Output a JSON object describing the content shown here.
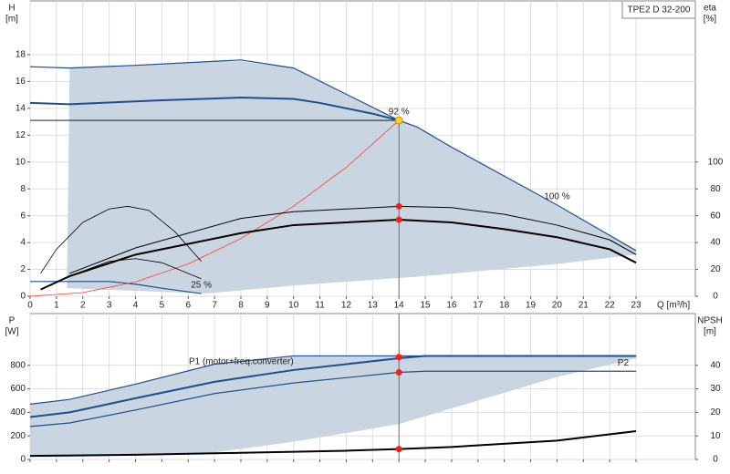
{
  "chart_data": [
    {
      "type": "line",
      "title": "TPE2 D 32-200",
      "xlabel": "Q [m³/h]",
      "ylabel": [
        "H",
        "[m]"
      ],
      "y2label": [
        "eta",
        "[%]"
      ],
      "xlim": [
        0,
        25.25
      ],
      "xticks": [
        0,
        1,
        2,
        3,
        4,
        5,
        6,
        7,
        8,
        9,
        10,
        11,
        12,
        13,
        14,
        15,
        16,
        17,
        18,
        19,
        20,
        21,
        22,
        23
      ],
      "ylim": [
        0,
        22
      ],
      "yticks": [
        0,
        2,
        4,
        6,
        8,
        10,
        12,
        14,
        16,
        18
      ],
      "y2lim": [
        0,
        220
      ],
      "y2ticks": [
        0,
        20,
        40,
        60,
        80,
        100
      ],
      "grid": true,
      "region": {
        "color": "#c9d5e1",
        "x": [
          1.4,
          1.5,
          4,
          7,
          8,
          10,
          14,
          14.7,
          23,
          23,
          20,
          15,
          10,
          6.7,
          1.4
        ],
        "values": [
          1.0,
          17.0,
          17.2,
          17.5,
          17.5,
          17.0,
          13.1,
          12.6,
          3.4,
          3.1,
          2.4,
          1.5,
          0.8,
          0.2,
          0.6
        ]
      },
      "series": [
        {
          "name": "100 %",
          "color": "#1f4e8c",
          "width": 1.2,
          "x": [
            0,
            1.5,
            4,
            7,
            8,
            10,
            14,
            14.7,
            16,
            20,
            23
          ],
          "values": [
            17.1,
            17.0,
            17.2,
            17.5,
            17.6,
            17.0,
            13.1,
            12.6,
            11.1,
            6.8,
            3.4
          ]
        },
        {
          "name": "92 %",
          "color": "#1f4e8c",
          "width": 2,
          "x": [
            0,
            1.5,
            5,
            8,
            10,
            11,
            13,
            14
          ],
          "values": [
            14.4,
            14.3,
            14.6,
            14.8,
            14.7,
            14.4,
            13.6,
            13.1
          ]
        },
        {
          "name": "25 %",
          "color": "#1f4e8c",
          "width": 1.2,
          "x": [
            0,
            1,
            3,
            4,
            5,
            6.5
          ],
          "values": [
            1.1,
            1.1,
            1.1,
            0.9,
            0.6,
            0.2
          ]
        },
        {
          "color": "#ff3b30",
          "width": 0.8,
          "x": [
            0,
            2,
            4,
            6,
            8,
            10,
            12,
            14
          ],
          "values": [
            0,
            0.27,
            1.07,
            2.4,
            4.3,
            6.7,
            9.6,
            13.1
          ]
        },
        {
          "color": "#000000",
          "width": 2,
          "axis": "y2",
          "x": [
            0.4,
            1.5,
            4,
            8,
            10,
            14,
            16,
            18,
            20,
            22,
            23
          ],
          "values": [
            5,
            15,
            31,
            47,
            53,
            57,
            55,
            50,
            44,
            35,
            25
          ]
        },
        {
          "color": "#000000",
          "width": 1,
          "axis": "y2",
          "x": [
            1.5,
            4,
            8,
            10,
            14,
            16,
            18,
            20,
            22,
            23
          ],
          "values": [
            17,
            36,
            58,
            63,
            67,
            66,
            61,
            53,
            42,
            31
          ]
        },
        {
          "color": "#000000",
          "width": 0.8,
          "axis": "y2",
          "x": [
            0.4,
            1,
            2,
            3,
            3.7,
            4.5,
            5.5,
            6.5
          ],
          "values": [
            17,
            35,
            55,
            65,
            67,
            64,
            48,
            26
          ]
        },
        {
          "color": "#000000",
          "width": 0.8,
          "axis": "y2",
          "x": [
            0.4,
            1.5,
            3,
            4,
            5,
            6.5
          ],
          "values": [
            5,
            15,
            26,
            28,
            25,
            13
          ]
        }
      ],
      "duty_point": {
        "x": 14,
        "y": 13.1,
        "color": "#ffd21a"
      },
      "points": [
        {
          "x": 14,
          "y": 67,
          "axis": "y2",
          "color": "#ff1a1a"
        },
        {
          "x": 14,
          "y": 57,
          "axis": "y2",
          "color": "#ff1a1a"
        }
      ]
    },
    {
      "type": "line",
      "ylabel": [
        "P",
        "[W]"
      ],
      "y2label": [
        "NPSH",
        "[m]"
      ],
      "xlim": [
        0,
        25.25
      ],
      "xticks": [
        0,
        1,
        2,
        3,
        4,
        5,
        6,
        7,
        8,
        9,
        10,
        11,
        12,
        13,
        14,
        15,
        16,
        17,
        18,
        19,
        20,
        21,
        22,
        23
      ],
      "ylim": [
        0,
        1240
      ],
      "yticks": [
        0,
        200,
        400,
        600,
        800
      ],
      "y2lim": [
        0,
        62
      ],
      "y2ticks": [
        0,
        10,
        20,
        30,
        40
      ],
      "grid": true,
      "region": {
        "color": "#c9d5e1",
        "x": [
          0,
          1.5,
          4,
          7,
          10,
          14,
          23,
          23,
          20,
          17,
          14,
          10,
          7,
          1.5,
          0
        ],
        "values": [
          470,
          510,
          640,
          810,
          880,
          880,
          880,
          860,
          700,
          500,
          300,
          150,
          60,
          20,
          20
        ]
      },
      "series": [
        {
          "color": "#1f4e8c",
          "width": 1.2,
          "x": [
            0,
            1.5,
            4,
            7,
            10,
            14,
            23
          ],
          "values": [
            470,
            510,
            640,
            810,
            880,
            880,
            880
          ]
        },
        {
          "name": "P1 (motor+freq.converter)",
          "color": "#1f4e8c",
          "width": 2,
          "x": [
            0,
            1.5,
            4,
            7,
            10,
            14,
            15,
            23
          ],
          "values": [
            360,
            400,
            520,
            660,
            760,
            860,
            880,
            880
          ]
        },
        {
          "name": "P2",
          "color": "#1f4e8c",
          "width": 1.2,
          "x": [
            0,
            1.5,
            4,
            7,
            10,
            14,
            15,
            23
          ],
          "values": [
            280,
            310,
            420,
            560,
            650,
            740,
            750,
            750
          ]
        },
        {
          "color": "#000000",
          "width": 2,
          "axis": "y2",
          "x": [
            0,
            4,
            8,
            12,
            14,
            16,
            20,
            23
          ],
          "values": [
            1.5,
            2,
            2.8,
            3.7,
            4.4,
            5.3,
            8,
            12
          ]
        }
      ],
      "points": [
        {
          "x": 14,
          "y": 870,
          "color": "#ff1a1a"
        },
        {
          "x": 14,
          "y": 740,
          "color": "#ff1a1a"
        },
        {
          "x": 14,
          "y": 4.4,
          "axis": "y2",
          "color": "#ff1a1a"
        }
      ]
    }
  ]
}
